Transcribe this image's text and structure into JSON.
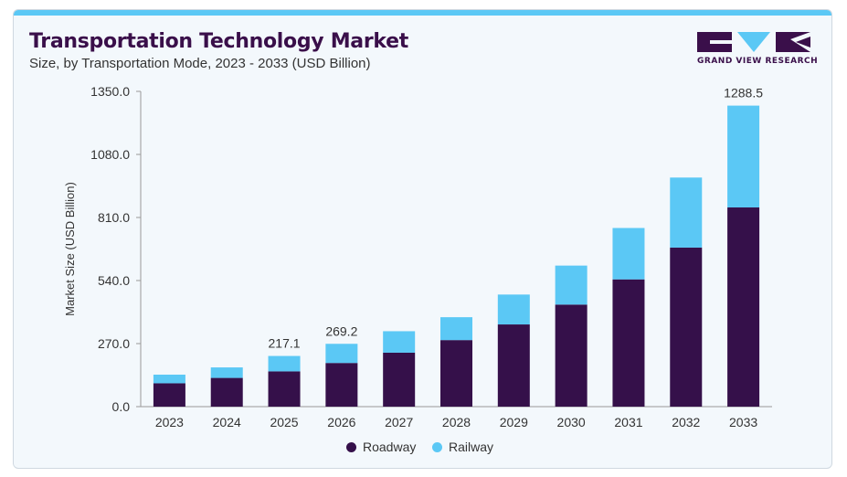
{
  "header": {
    "title": "Transportation Technology Market",
    "subtitle": "Size, by Transportation Mode, 2023 - 2033 (USD Billion)",
    "logo_text": "GRAND VIEW RESEARCH"
  },
  "colors": {
    "roadway": "#35104a",
    "railway": "#5bc8f5",
    "accent_bar": "#5bc8f5",
    "title": "#3a0f4a"
  },
  "chart_data": {
    "type": "bar",
    "stacked": true,
    "categories": [
      "2023",
      "2024",
      "2025",
      "2026",
      "2027",
      "2028",
      "2029",
      "2030",
      "2031",
      "2032",
      "2033"
    ],
    "series": [
      {
        "name": "Roadway",
        "values": [
          100,
          123,
          151,
          187,
          231,
          285,
          352,
          437,
          545,
          681,
          853
        ],
        "color": "#35104a"
      },
      {
        "name": "Railway",
        "values": [
          37,
          45,
          66,
          82,
          92,
          98,
          128,
          167,
          220,
          300,
          436
        ],
        "color": "#5bc8f5"
      }
    ],
    "data_labels": [
      {
        "category": "2025",
        "text": "217.1"
      },
      {
        "category": "2026",
        "text": "269.2"
      },
      {
        "category": "2033",
        "text": "1288.5"
      }
    ],
    "yticks": [
      "0.0",
      "270.0",
      "540.0",
      "810.0",
      "1080.0",
      "1350.0"
    ],
    "ylim": [
      0,
      1350
    ],
    "ylabel": "Market Size (USD Billion)",
    "xlabel": "",
    "legend_position": "bottom-center",
    "grid": false
  }
}
